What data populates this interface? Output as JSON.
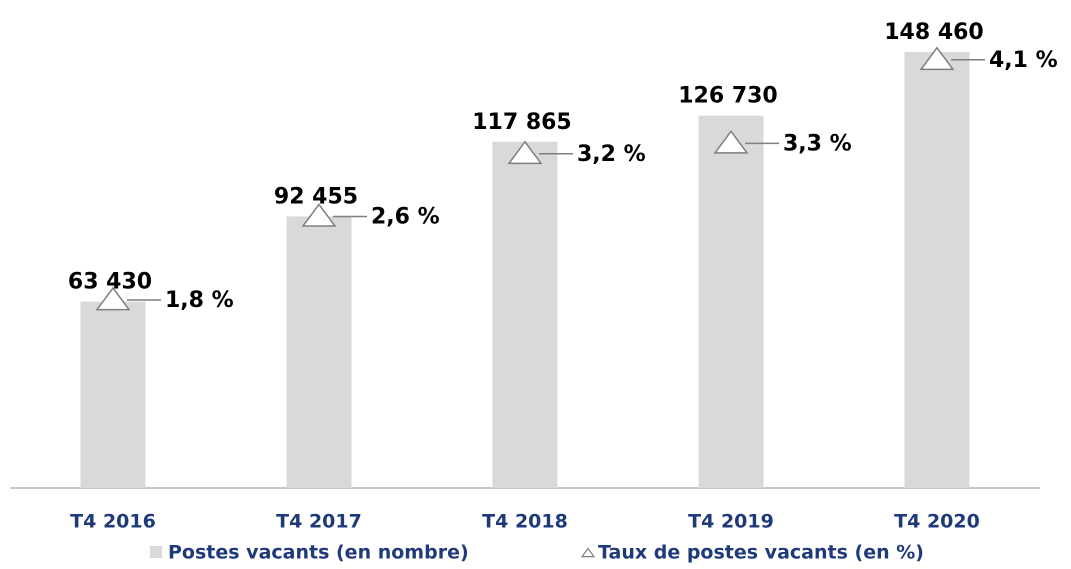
{
  "chart_data": {
    "type": "bar",
    "categories": [
      "T4 2016",
      "T4 2017",
      "T4 2018",
      "T4 2019",
      "T4 2020"
    ],
    "series": [
      {
        "name": "Postes vacants (en nombre)",
        "color": "#d9d9d9",
        "values": [
          63430,
          92455,
          117865,
          126730,
          148460
        ],
        "value_labels": [
          "63 430",
          "92 455",
          "117 865",
          "126 730",
          "148 460"
        ]
      },
      {
        "name": "Taux de postes vacants (en %)",
        "color": "#7f7f7f",
        "axis": "y2",
        "marker": "triangle",
        "values": [
          1.8,
          2.6,
          3.2,
          3.3,
          4.1
        ],
        "value_labels": [
          "1,8 %",
          "2,6 %",
          "3,2 %",
          "3,3 %",
          "4,1 %"
        ]
      }
    ],
    "ylim": [
      0,
      160000
    ],
    "y2lim": [
      0,
      4.5
    ],
    "grid": false,
    "legend": "bottom"
  }
}
